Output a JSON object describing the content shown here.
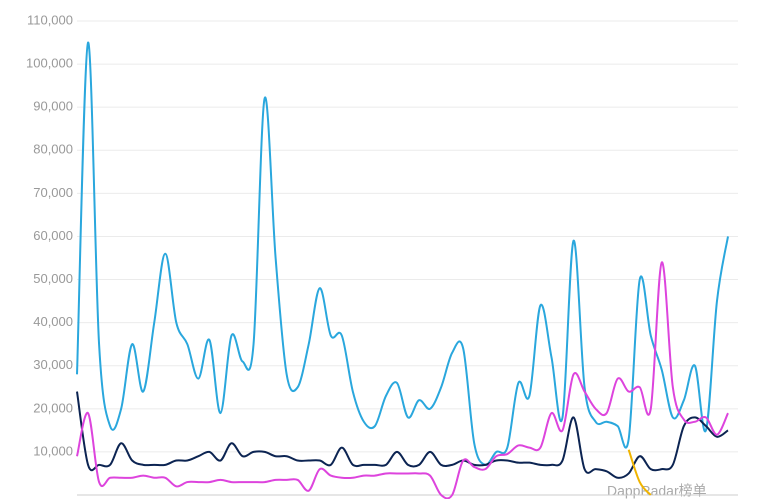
{
  "chart_data": {
    "type": "line",
    "categories": [
      null,
      null,
      null,
      null,
      null,
      null,
      null,
      null,
      null,
      null,
      null,
      null,
      null,
      null,
      null,
      null,
      null,
      null,
      null,
      null,
      null,
      null,
      null,
      null,
      null,
      null,
      null,
      null,
      null,
      null,
      null,
      null,
      null,
      null,
      null,
      null,
      null,
      null,
      null,
      null,
      null,
      null,
      null,
      null,
      null,
      null,
      null,
      null,
      null,
      null,
      null,
      null,
      null,
      null,
      null,
      null,
      null,
      null,
      null,
      null
    ],
    "series": [
      {
        "color": "#2aa7dd",
        "values": [
          28000,
          105000,
          35000,
          16000,
          20000,
          35000,
          24000,
          40000,
          56000,
          40000,
          35000,
          27000,
          36000,
          19000,
          37000,
          31000,
          35000,
          92000,
          55000,
          28000,
          25000,
          35000,
          48000,
          37000,
          37000,
          24000,
          17000,
          16000,
          23000,
          26000,
          18000,
          22000,
          20000,
          25000,
          33000,
          34000,
          12000,
          7000,
          10000,
          11000,
          26000,
          23000,
          44000,
          32000,
          18000,
          59000,
          25000,
          17000,
          17000,
          16000,
          13000,
          50000,
          37000,
          29000,
          18000,
          22000,
          30000,
          15000,
          45000,
          60000
        ]
      },
      {
        "color": "#0c2452",
        "values": [
          24000,
          7000,
          7000,
          7000,
          12000,
          8000,
          7000,
          7000,
          7000,
          8000,
          8000,
          9000,
          10000,
          8000,
          12000,
          9000,
          10000,
          10000,
          9000,
          9000,
          8000,
          8000,
          8000,
          7000,
          11000,
          7000,
          7000,
          7000,
          7000,
          10000,
          7000,
          7000,
          10000,
          7000,
          7000,
          8000,
          7000,
          7000,
          8000,
          8000,
          7500,
          7500,
          7000,
          7000,
          8000,
          18000,
          6000,
          6000,
          5500,
          4000,
          5000,
          9000,
          6000,
          6000,
          7000,
          16000,
          18000,
          16000,
          13500,
          15000
        ]
      },
      {
        "color": "#dd44dd",
        "values": [
          9000,
          19000,
          3000,
          4000,
          4000,
          4000,
          4500,
          4000,
          4000,
          2000,
          3000,
          3000,
          3000,
          3500,
          3000,
          3000,
          3000,
          3000,
          3500,
          3500,
          3500,
          1000,
          6000,
          4500,
          4000,
          4000,
          4500,
          4500,
          5000,
          5000,
          5000,
          5000,
          4500,
          0,
          0,
          8000,
          6500,
          6000,
          9000,
          9500,
          11500,
          11000,
          11000,
          19000,
          15000,
          28000,
          24000,
          20000,
          19000,
          27000,
          24000,
          25000,
          20000,
          54000,
          25000,
          17500,
          17000,
          18000,
          14000,
          19000
        ]
      },
      {
        "color": "#f0b400",
        "values": [
          null,
          null,
          null,
          null,
          null,
          null,
          null,
          null,
          null,
          null,
          null,
          null,
          null,
          null,
          null,
          null,
          null,
          null,
          null,
          null,
          null,
          null,
          null,
          null,
          null,
          null,
          null,
          null,
          null,
          null,
          null,
          null,
          null,
          null,
          null,
          null,
          null,
          null,
          null,
          null,
          null,
          null,
          null,
          null,
          null,
          null,
          null,
          null,
          null,
          null,
          10500,
          3000,
          0,
          null,
          null,
          null,
          null,
          null,
          null,
          null
        ]
      }
    ],
    "ylim": [
      0,
      110000
    ],
    "yticks": [
      {
        "value": 10000,
        "label": "10,000"
      },
      {
        "value": 20000,
        "label": "20,000"
      },
      {
        "value": 30000,
        "label": "30,000"
      },
      {
        "value": 40000,
        "label": "40,000"
      },
      {
        "value": 50000,
        "label": "50,000"
      },
      {
        "value": 60000,
        "label": "60,000"
      },
      {
        "value": 70000,
        "label": "70,000"
      },
      {
        "value": 80000,
        "label": "80,000"
      },
      {
        "value": 90000,
        "label": "90,000"
      },
      {
        "value": 100000,
        "label": "100,000"
      },
      {
        "value": 110000,
        "label": "110,000"
      }
    ],
    "grid": true,
    "watermark": "DappRadar榜单"
  }
}
